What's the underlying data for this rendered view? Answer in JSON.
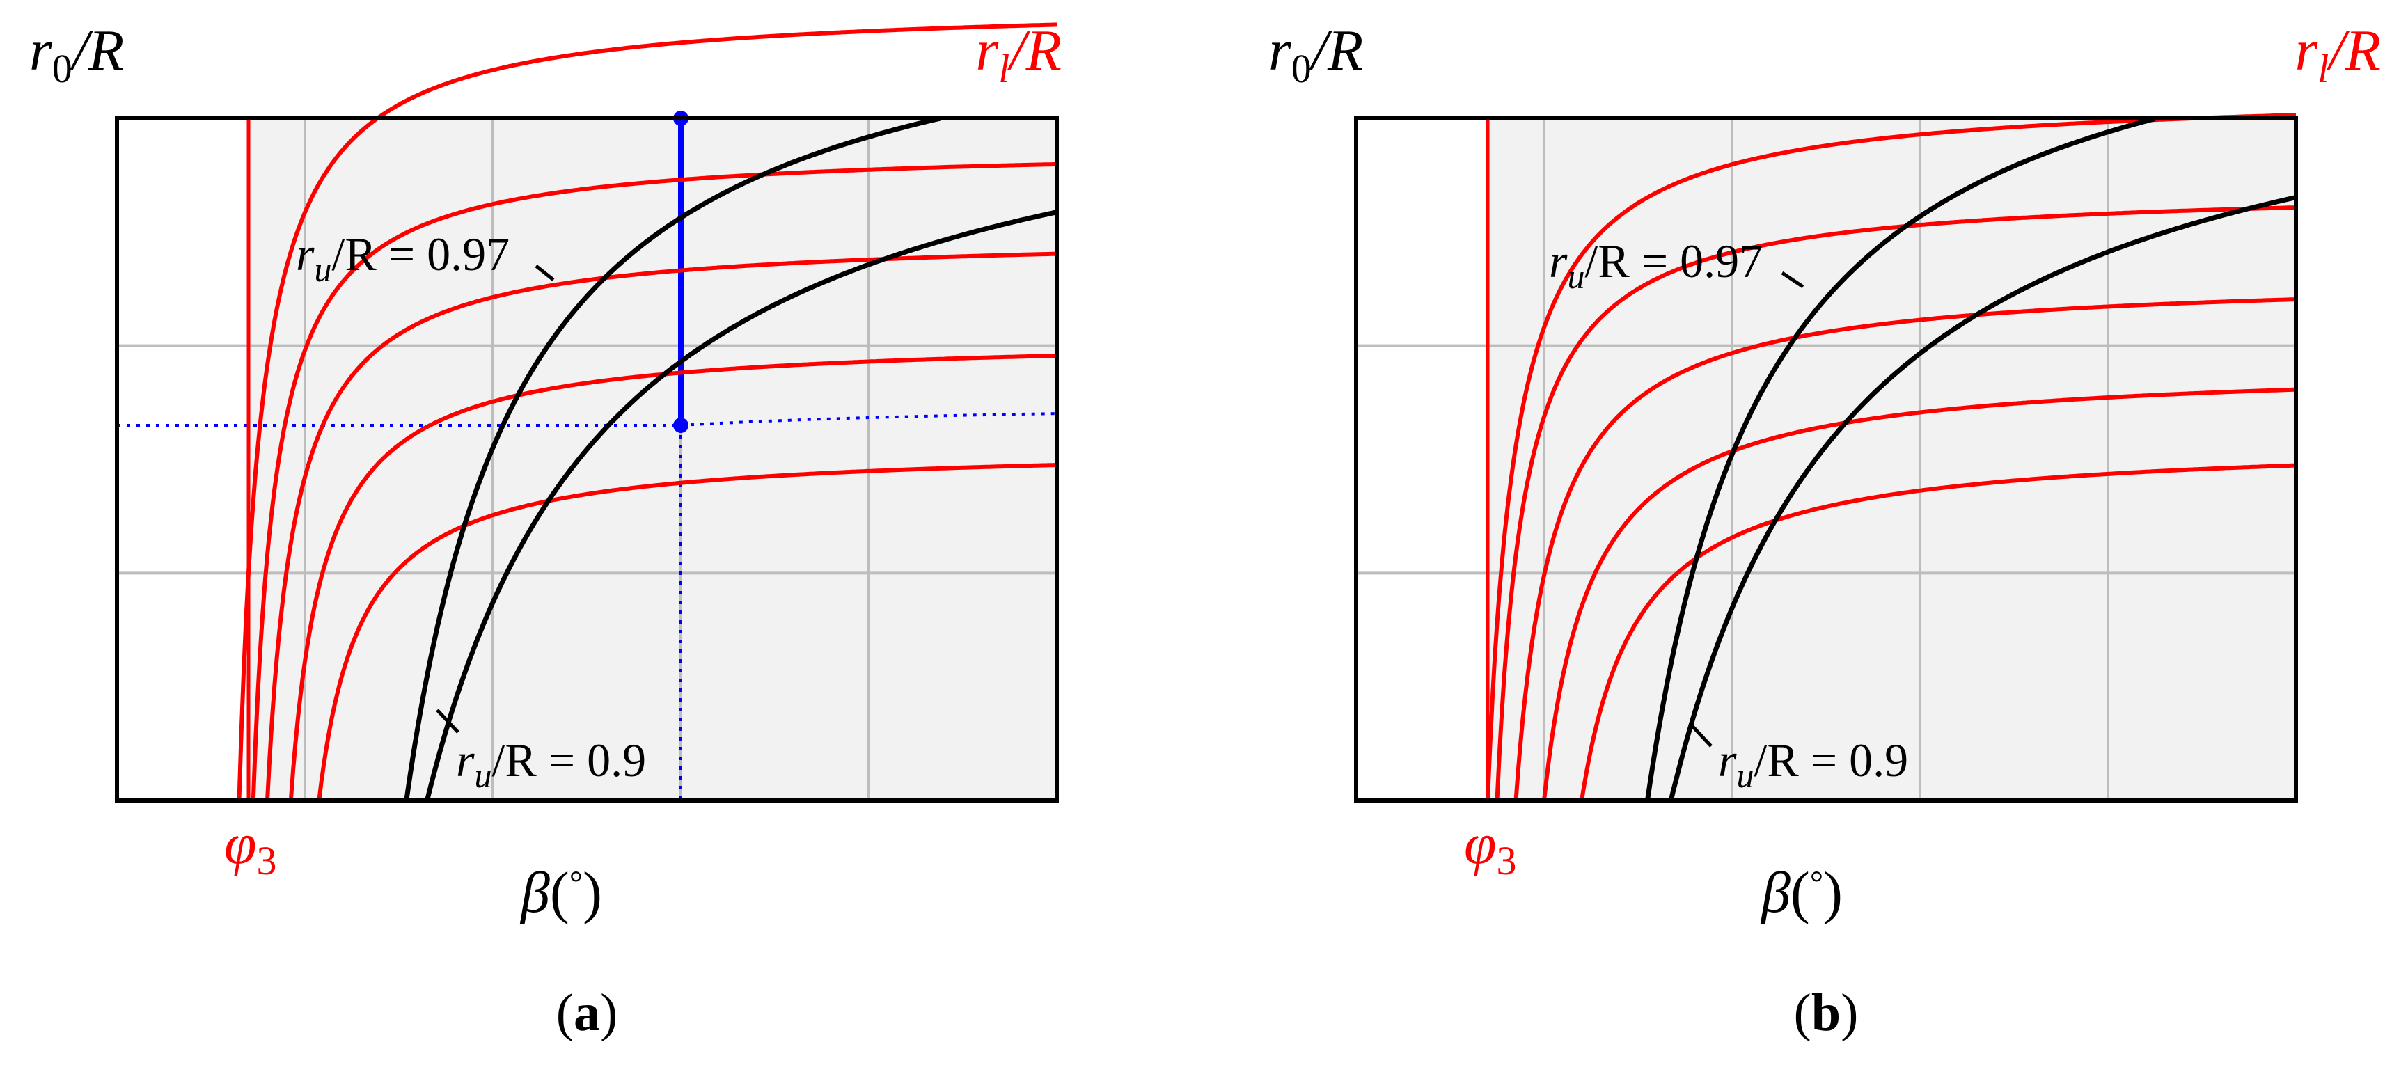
{
  "colors": {
    "black": "#000000",
    "red": "#ff0000",
    "blue": "#0000ff",
    "grid": "#bdbdbd",
    "shade": "#f2f2f2"
  },
  "chart_data": [
    {
      "type": "line",
      "panel_label": {
        "paren_open": "(",
        "letter": "a",
        "paren_close": ")"
      },
      "xlabel": {
        "symbol": "β",
        "paren_open": "(",
        "unit": "°",
        "paren_close": ")"
      },
      "ylabel_left": {
        "symbol": "r",
        "sub": "0",
        "rest": "/R"
      },
      "ylabel_right": {
        "symbol": "r",
        "sub": "l",
        "rest": "/R"
      },
      "x_marker_label": {
        "symbol": "φ",
        "sub": "3"
      },
      "annotations": [
        {
          "symbol": "r",
          "sub": "u",
          "rest": "/R = 0.97"
        },
        {
          "symbol": "r",
          "sub": "u",
          "rest": "/R = 0.9"
        }
      ],
      "xlim": [
        0,
        100
      ],
      "ylim": [
        0,
        100
      ],
      "grid": true,
      "phi3_x": 14,
      "red_curves": [
        {
          "x0": 13,
          "A": 117,
          "c": 2.5
        },
        {
          "x0": 14.5,
          "A": 96,
          "c": 2.5
        },
        {
          "x0": 16,
          "A": 83,
          "c": 3
        },
        {
          "x0": 18.5,
          "A": 68,
          "c": 3.5
        },
        {
          "x0": 21.5,
          "A": 52,
          "c": 4.5
        }
      ],
      "black_curves": [
        {
          "x0": 30.8,
          "A": 122,
          "c": 12.5
        },
        {
          "x0": 33,
          "A": 112,
          "c": 20
        }
      ],
      "blue_vertical_x": 60,
      "blue_upper_y": 100,
      "blue_lower_y": 55,
      "blue_dotted_curve": {
        "x0": 16,
        "A": 83,
        "c": 3
      }
    },
    {
      "type": "line",
      "panel_label": {
        "paren_open": "(",
        "letter": "b",
        "paren_close": ")"
      },
      "xlabel": {
        "symbol": "β",
        "paren_open": "(",
        "unit": "°",
        "paren_close": ")"
      },
      "ylabel_left": {
        "symbol": "r",
        "sub": "0",
        "rest": "/R"
      },
      "ylabel_right": {
        "symbol": "r",
        "sub": "l",
        "rest": "/R"
      },
      "x_marker_label": {
        "symbol": "φ",
        "sub": "3"
      },
      "annotations": [
        {
          "symbol": "r",
          "sub": "u",
          "rest": "/R = 0.97"
        },
        {
          "symbol": "r",
          "sub": "u",
          "rest": "/R = 0.9"
        }
      ],
      "xlim": [
        0,
        100
      ],
      "ylim": [
        0,
        100
      ],
      "grid": true,
      "phi3_x": 14,
      "red_curves": [
        {
          "x0": 14,
          "A": 104,
          "c": 3
        },
        {
          "x0": 15,
          "A": 90,
          "c": 3
        },
        {
          "x0": 17,
          "A": 77,
          "c": 4
        },
        {
          "x0": 20,
          "A": 64,
          "c": 5
        },
        {
          "x0": 24,
          "A": 53,
          "c": 6
        }
      ],
      "black_curves": [
        {
          "x0": 31,
          "A": 124,
          "c": 13
        },
        {
          "x0": 33.5,
          "A": 115,
          "c": 20
        }
      ]
    }
  ]
}
